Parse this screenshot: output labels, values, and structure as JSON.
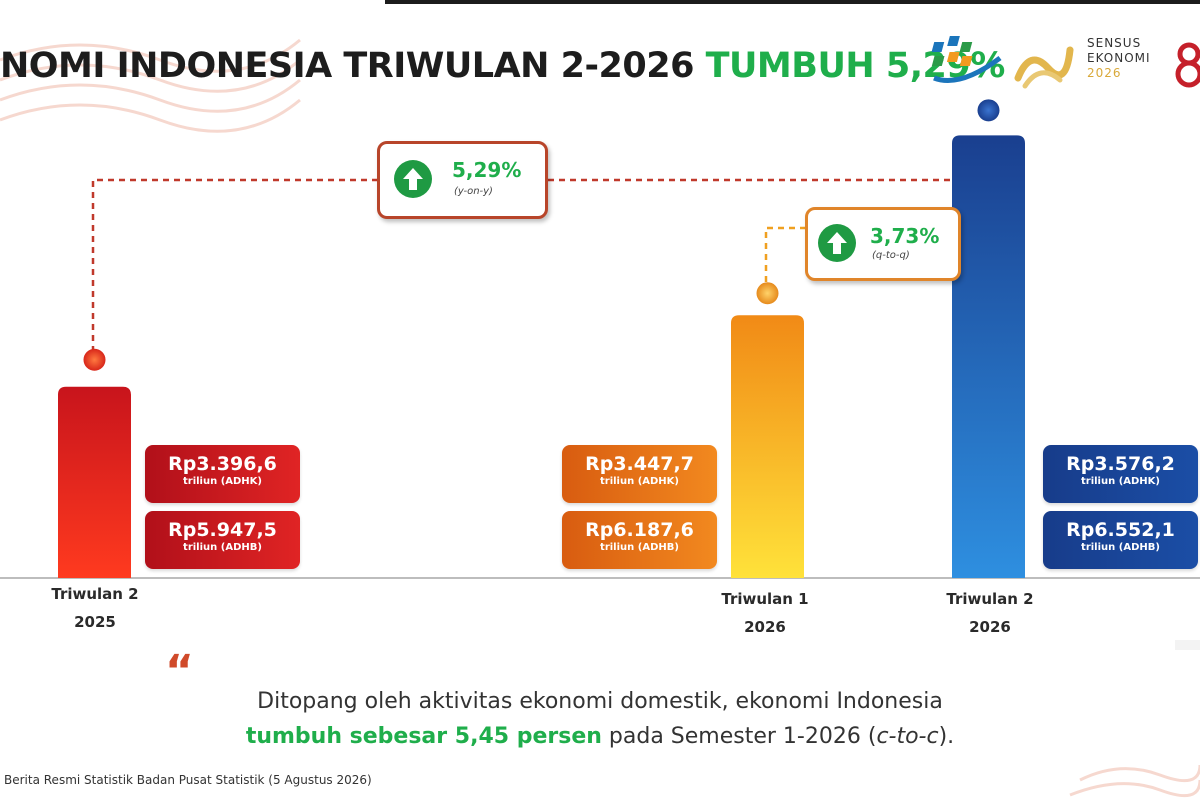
{
  "title": {
    "main": "NOMI INDONESIA TRIWULAN 2-2026",
    "highlight": "TUMBUH 5,29%"
  },
  "logos": {
    "census_label_1": "SENSUS",
    "census_label_2": "EKONOMI",
    "census_year": "2026"
  },
  "colors": {
    "green": "#1fae4b",
    "red": "#e02424",
    "orange": "#f2891f",
    "blue": "#1b4ea6"
  },
  "chart_data": {
    "type": "bar",
    "categories": [
      {
        "line1": "Triwulan 2",
        "line2": "2025"
      },
      {
        "line1": "Triwulan 1",
        "line2": "2026"
      },
      {
        "line1": "Triwulan 2",
        "line2": "2026"
      }
    ],
    "values_adhk": [
      3396.6,
      3447.7,
      3576.2
    ],
    "value_labels": [
      {
        "adhk": "Rp3.396,6",
        "adhk_unit": "triliun (ADHK)",
        "adhb": "Rp5.947,5",
        "adhb_unit": "triliun (ADHB)"
      },
      {
        "adhk": "Rp3.447,7",
        "adhk_unit": "triliun (ADHK)",
        "adhb": "Rp6.187,6",
        "adhb_unit": "triliun (ADHB)"
      },
      {
        "adhk": "Rp3.576,2",
        "adhk_unit": "triliun (ADHK)",
        "adhb": "Rp6.552,1",
        "adhb_unit": "triliun (ADHB)"
      }
    ],
    "annotations": [
      {
        "value": "5,29%",
        "label": "(y-on-y)"
      },
      {
        "value": "3,73%",
        "label": "(q-to-q)"
      }
    ],
    "grid": false,
    "legend": "none"
  },
  "summary": {
    "line1": "Ditopang oleh aktivitas ekonomi domestik, ekonomi Indonesia",
    "highlight": "tumbuh sebesar 5,45 persen",
    "rest": " pada Semester 1-2026 (",
    "italic": "c-to-c",
    "end": ")."
  },
  "source": "Berita Resmi Statistik Badan Pusat Statistik (5 Agustus 2026)"
}
